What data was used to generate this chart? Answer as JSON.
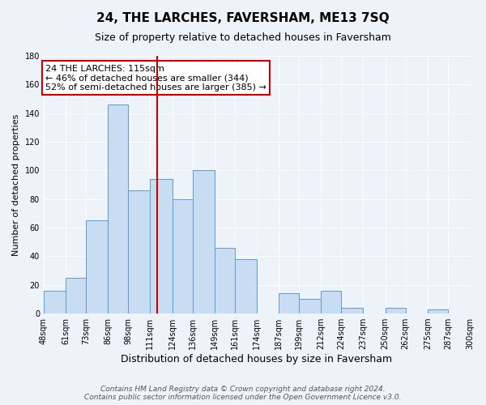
{
  "title": "24, THE LARCHES, FAVERSHAM, ME13 7SQ",
  "subtitle": "Size of property relative to detached houses in Faversham",
  "xlabel": "Distribution of detached houses by size in Faversham",
  "ylabel": "Number of detached properties",
  "footer_lines": [
    "Contains HM Land Registry data © Crown copyright and database right 2024.",
    "Contains public sector information licensed under the Open Government Licence v3.0."
  ],
  "bin_labels": [
    "48sqm",
    "61sqm",
    "73sqm",
    "86sqm",
    "98sqm",
    "111sqm",
    "124sqm",
    "136sqm",
    "149sqm",
    "161sqm",
    "174sqm",
    "187sqm",
    "199sqm",
    "212sqm",
    "224sqm",
    "237sqm",
    "250sqm",
    "262sqm",
    "275sqm",
    "287sqm",
    "300sqm"
  ],
  "bar_heights": [
    16,
    25,
    65,
    146,
    86,
    94,
    80,
    100,
    46,
    38,
    0,
    14,
    10,
    16,
    4,
    0,
    4,
    0,
    3,
    0,
    0
  ],
  "bin_edges": [
    48,
    61,
    73,
    86,
    98,
    111,
    124,
    136,
    149,
    161,
    174,
    187,
    199,
    212,
    224,
    237,
    250,
    262,
    275,
    287,
    300
  ],
  "bar_color": "#c9ddf2",
  "bar_edge_color": "#5b9bd5",
  "vline_x": 115,
  "vline_color": "#cc0000",
  "ylim": [
    0,
    180
  ],
  "yticks": [
    0,
    20,
    40,
    60,
    80,
    100,
    120,
    140,
    160,
    180
  ],
  "background_color": "#eef2f9",
  "grid_color": "#ffffff",
  "annotation_text": "24 THE LARCHES: 115sqm\n← 46% of detached houses are smaller (344)\n52% of semi-detached houses are larger (385) →",
  "annotation_box_color": "white",
  "annotation_box_edge": "#cc0000",
  "title_fontsize": 11,
  "subtitle_fontsize": 9,
  "xlabel_fontsize": 9,
  "ylabel_fontsize": 8,
  "tick_fontsize": 7,
  "footer_fontsize": 6.5,
  "annotation_fontsize": 8
}
